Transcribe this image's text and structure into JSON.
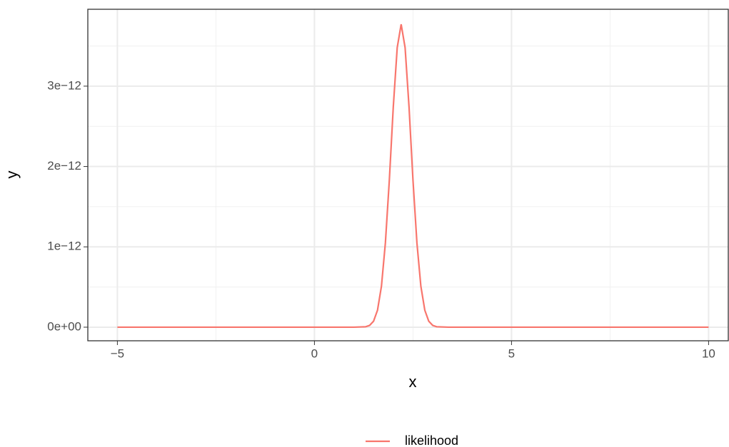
{
  "chart_data": {
    "type": "line",
    "x_label": "x",
    "y_label": "y",
    "x": [
      -5,
      0,
      1,
      1.3,
      1.4,
      1.5,
      1.6,
      1.7,
      1.8,
      1.9,
      2.0,
      2.1,
      2.2,
      2.3,
      2.4,
      2.5,
      2.6,
      2.7,
      2.8,
      2.9,
      3.0,
      3.1,
      3.4,
      5,
      10
    ],
    "series": [
      {
        "name": "likelihood",
        "color": "#f8766d",
        "values": [
          0,
          0,
          0,
          5.8e-15,
          2.25e-14,
          7.5e-14,
          2.12e-13,
          5.1e-13,
          1.05e-12,
          1.83e-12,
          2.74e-12,
          3.48e-12,
          3.77e-12,
          3.48e-12,
          2.74e-12,
          1.83e-12,
          1.05e-12,
          5.1e-13,
          2.12e-13,
          7.5e-14,
          2.25e-14,
          5.8e-15,
          0,
          0,
          0
        ]
      }
    ],
    "xlim": [
      -5.75,
      10.5
    ],
    "ylim": [
      -1.69e-13,
      3.957e-12
    ],
    "xticks": [
      {
        "value": -5,
        "label": "−5"
      },
      0,
      5,
      10
    ],
    "yticks": [
      {
        "value": 0,
        "label": "0e+00"
      },
      {
        "value": 1e-12,
        "label": "1e−12"
      },
      {
        "value": 2e-12,
        "label": "2e−12"
      },
      {
        "value": 3e-12,
        "label": "3e−12"
      }
    ],
    "x_minor_ticks": [
      -2.5,
      2.5,
      7.5
    ],
    "y_minor_ticks": [
      5e-13,
      1.5e-12,
      2.5e-12,
      3.5e-12
    ],
    "grid": true,
    "legend_position": "bottom"
  }
}
